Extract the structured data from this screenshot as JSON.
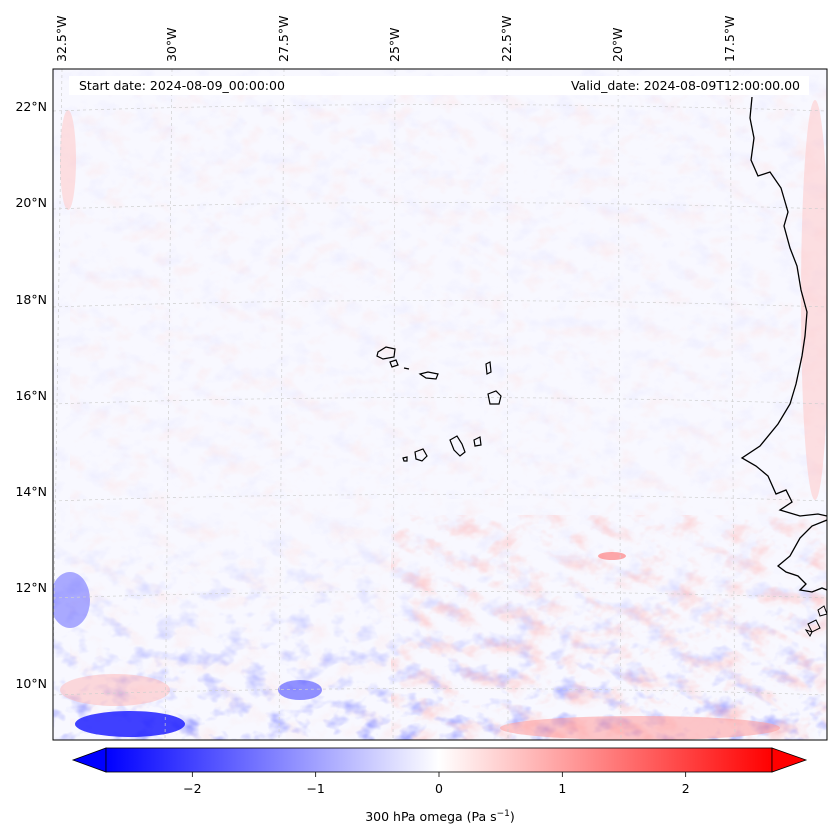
{
  "map": {
    "start_label": "Start date: 2024-08-09_00:00:00",
    "valid_label": "Valid_date: 2024-08-09T12:00:00.00",
    "lon_labels": [
      "32.5°W",
      "30°W",
      "27.5°W",
      "25°W",
      "22.5°W",
      "20°W",
      "17.5°W"
    ],
    "lat_labels": [
      "22°N",
      "20°N",
      "18°N",
      "16°N",
      "14°N",
      "12°N",
      "10°N"
    ],
    "colors": {
      "negative": "#0000ff",
      "zero": "#ffffff",
      "positive": "#ff0000",
      "coast": "#000000"
    }
  },
  "colorbar": {
    "vmin": -2.7,
    "vmax": 2.7,
    "extend": "both",
    "ticks": [
      {
        "value": -2,
        "label": "−2"
      },
      {
        "value": -1,
        "label": "−1"
      },
      {
        "value": 0,
        "label": "0"
      },
      {
        "value": 1,
        "label": "1"
      },
      {
        "value": 2,
        "label": "2"
      }
    ],
    "label_main": "300 hPa omega (Pa s",
    "label_sup": "−1",
    "label_end": ")"
  }
}
